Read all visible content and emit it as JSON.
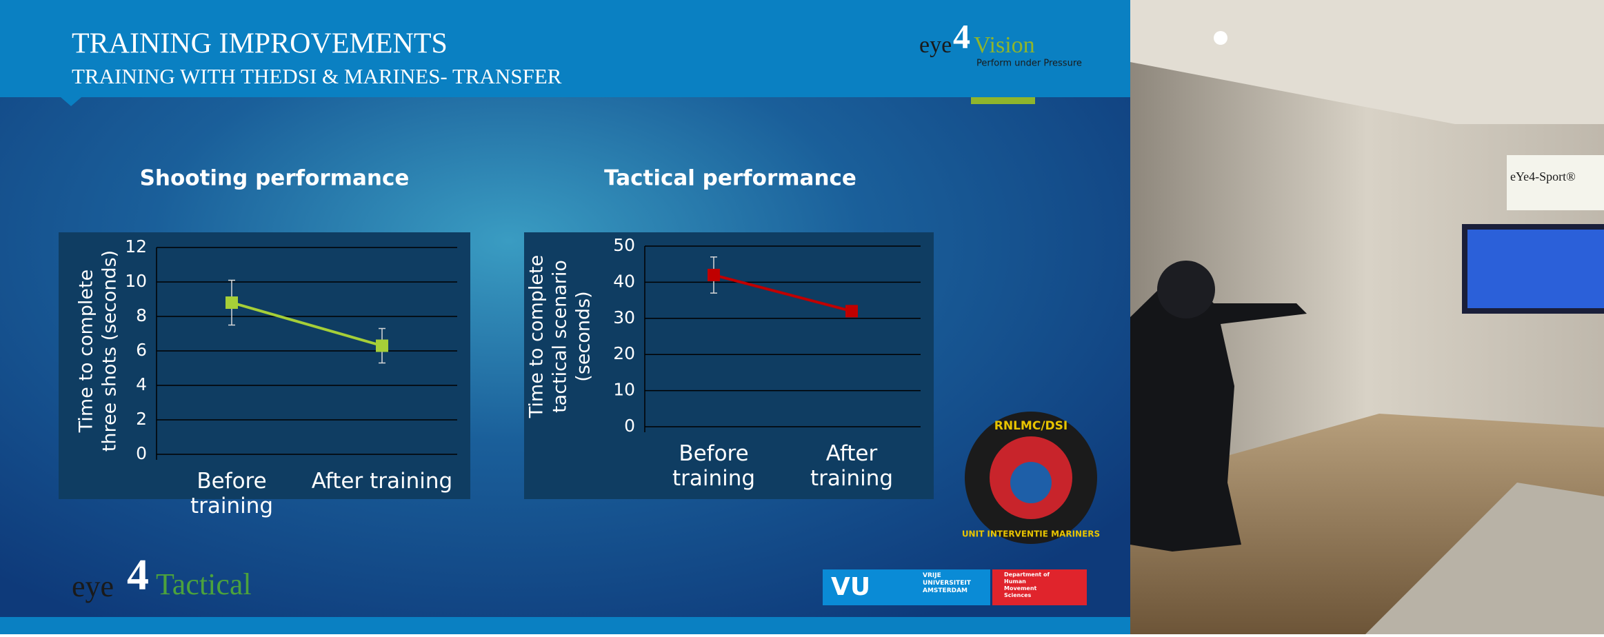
{
  "slide": {
    "title": "TRAINING IMPROVEMENTS",
    "subtitle": "TRAINING WITH THEDSI & MARINES- TRANSFER",
    "logo_top": {
      "eye": "eye",
      "four": "4",
      "brand": "Vision",
      "tagline": "Perform under Pressure"
    },
    "logo_bottom": {
      "eye": "eye",
      "four": "4",
      "brand": "Tactical"
    },
    "badge": {
      "top": "RNLMC/DSI",
      "bottom": "UNIT INTERVENTIE MARINERS"
    },
    "vu": {
      "mark": "VU",
      "name": "VRIJE UNIVERSITEIT AMSTERDAM",
      "dept": "Department of Human Movement Sciences"
    },
    "photo": {
      "sign": "eYe4-Sport®"
    }
  },
  "chart_data": [
    {
      "type": "line",
      "title": "Shooting performance",
      "ylabel": [
        "Time to complete",
        "three shots (seconds)"
      ],
      "categories": [
        "Before training",
        "After training"
      ],
      "series": [
        {
          "color": "#a6cf38",
          "values": [
            8.8,
            6.3
          ],
          "errors": [
            1.3,
            1.0
          ]
        }
      ],
      "ylim": [
        0,
        12
      ],
      "yticks": [
        0,
        2,
        4,
        6,
        8,
        10,
        12
      ],
      "grid": true
    },
    {
      "type": "line",
      "title": "Tactical performance",
      "ylabel": [
        "Time to complete",
        "tactical scenario",
        "(seconds)"
      ],
      "categories": [
        "Before training",
        "After training"
      ],
      "series": [
        {
          "color": "#c00000",
          "values": [
            42,
            32
          ],
          "errors": [
            5,
            0.5
          ]
        }
      ],
      "ylim": [
        0,
        50
      ],
      "yticks": [
        0,
        10,
        20,
        30,
        40,
        50
      ],
      "grid": true
    }
  ]
}
